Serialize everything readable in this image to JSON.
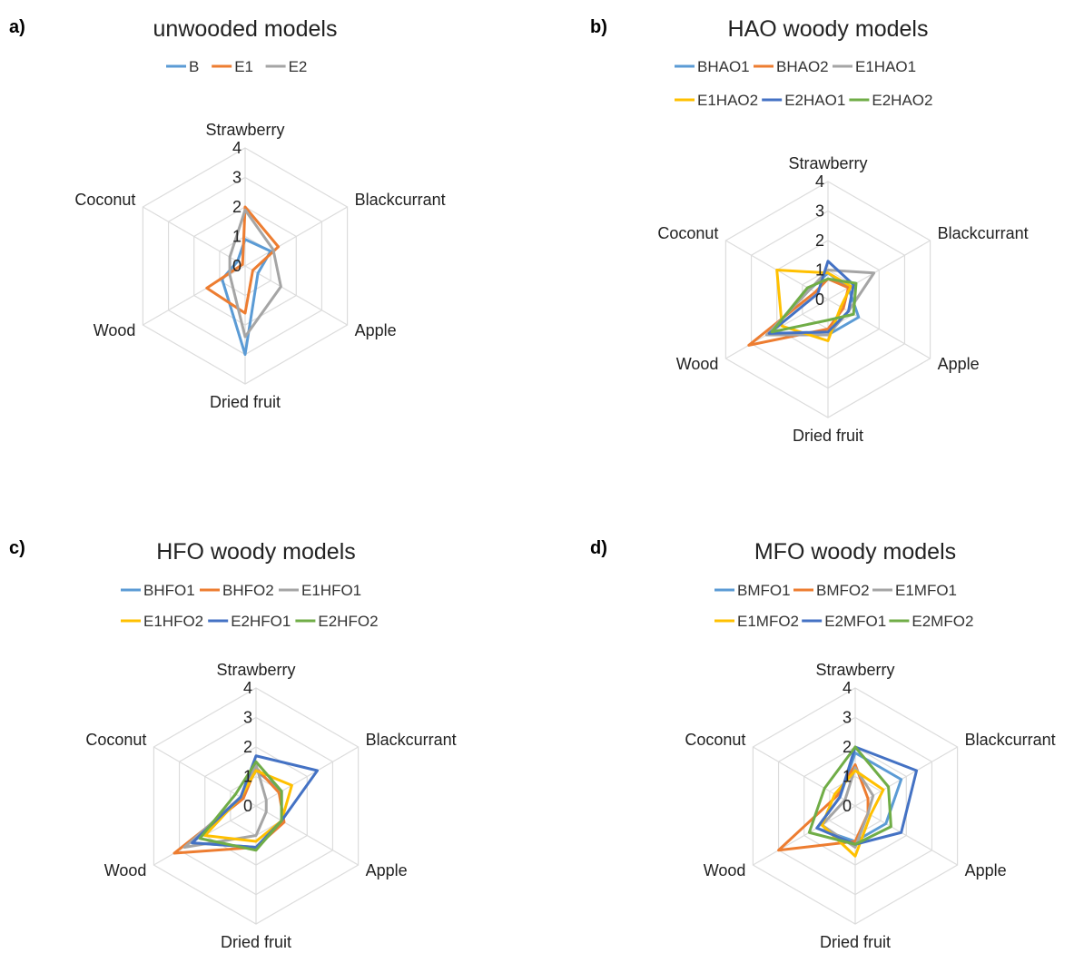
{
  "chart_data": [
    {
      "type": "radar",
      "panel_label": "a)",
      "title": "unwooded models",
      "axes": [
        "Strawberry",
        "Blackcurrant",
        "Apple",
        "Dried fruit",
        "Wood",
        "Coconut"
      ],
      "ticks": [
        "0",
        "1",
        "2",
        "3",
        "4"
      ],
      "rlim": [
        0,
        4
      ],
      "grid": true,
      "legend_position": "top",
      "series": [
        {
          "name": "B",
          "color": "#5B9BD5",
          "values": [
            0.9,
            1.0,
            0.5,
            3.0,
            0.9,
            0.3
          ]
        },
        {
          "name": "E1",
          "color": "#ED7D31",
          "values": [
            2.0,
            1.3,
            0.3,
            1.6,
            1.5,
            0.1
          ]
        },
        {
          "name": "E2",
          "color": "#A5A5A5",
          "values": [
            1.9,
            1.1,
            1.4,
            2.4,
            0.6,
            0.6
          ]
        }
      ]
    },
    {
      "type": "radar",
      "panel_label": "b)",
      "title": "HAO woody models",
      "axes": [
        "Strawberry",
        "Blackcurrant",
        "Apple",
        "Dried fruit",
        "Wood",
        "Coconut"
      ],
      "ticks": [
        "0",
        "1",
        "2",
        "3",
        "4"
      ],
      "rlim": [
        0,
        4
      ],
      "grid": true,
      "legend_position": "top",
      "series": [
        {
          "name": "BHAO1",
          "color": "#5B9BD5",
          "values": [
            0.9,
            0.8,
            1.2,
            1.2,
            2.4,
            0.7
          ]
        },
        {
          "name": "BHAO2",
          "color": "#ED7D31",
          "values": [
            0.7,
            0.8,
            0.6,
            1.0,
            3.1,
            0.5
          ]
        },
        {
          "name": "E1HAO1",
          "color": "#A5A5A5",
          "values": [
            1.0,
            1.8,
            0.8,
            1.2,
            2.4,
            0.7
          ]
        },
        {
          "name": "E1HAO2",
          "color": "#FFC000",
          "values": [
            0.9,
            0.9,
            0.5,
            1.4,
            1.8,
            2.0
          ]
        },
        {
          "name": "E2HAO1",
          "color": "#4472C4",
          "values": [
            1.3,
            1.0,
            0.8,
            1.1,
            2.3,
            0.4
          ]
        },
        {
          "name": "E2HAO2",
          "color": "#70AD47",
          "values": [
            0.7,
            1.1,
            1.0,
            0.7,
            2.2,
            0.8
          ]
        }
      ]
    },
    {
      "type": "radar",
      "panel_label": "c)",
      "title": "HFO woody models",
      "axes": [
        "Strawberry",
        "Blackcurrant",
        "Apple",
        "Dried fruit",
        "Wood",
        "Coconut"
      ],
      "ticks": [
        "0",
        "1",
        "2",
        "3",
        "4"
      ],
      "rlim": [
        0,
        4
      ],
      "grid": true,
      "legend_position": "top",
      "series": [
        {
          "name": "BHFO1",
          "color": "#5B9BD5",
          "values": [
            1.2,
            1.0,
            1.0,
            1.4,
            2.5,
            0.6
          ]
        },
        {
          "name": "BHFO2",
          "color": "#ED7D31",
          "values": [
            1.3,
            0.9,
            1.1,
            1.4,
            3.2,
            0.5
          ]
        },
        {
          "name": "E1HFO1",
          "color": "#A5A5A5",
          "values": [
            1.4,
            0.4,
            0.4,
            1.0,
            2.8,
            0.6
          ]
        },
        {
          "name": "E1HFO2",
          "color": "#FFC000",
          "values": [
            1.2,
            1.4,
            1.0,
            1.2,
            2.0,
            0.6
          ]
        },
        {
          "name": "E2HFO1",
          "color": "#4472C4",
          "values": [
            1.7,
            2.4,
            1.0,
            1.4,
            2.5,
            0.6
          ]
        },
        {
          "name": "E2HFO2",
          "color": "#70AD47",
          "values": [
            1.5,
            1.0,
            1.0,
            1.5,
            2.2,
            0.8
          ]
        }
      ]
    },
    {
      "type": "radar",
      "panel_label": "d)",
      "title": "MFO woody models",
      "axes": [
        "Strawberry",
        "Blackcurrant",
        "Apple",
        "Dried fruit",
        "Wood",
        "Coconut"
      ],
      "ticks": [
        "0",
        "1",
        "2",
        "3",
        "4"
      ],
      "rlim": [
        0,
        4
      ],
      "grid": true,
      "legend_position": "top",
      "series": [
        {
          "name": "BMFO1",
          "color": "#5B9BD5",
          "values": [
            1.8,
            1.8,
            1.2,
            1.2,
            1.5,
            0.6
          ]
        },
        {
          "name": "BMFO2",
          "color": "#ED7D31",
          "values": [
            1.4,
            0.5,
            0.5,
            1.2,
            3.0,
            0.7
          ]
        },
        {
          "name": "E1MFO1",
          "color": "#A5A5A5",
          "values": [
            1.3,
            0.7,
            0.5,
            1.4,
            1.3,
            0.4
          ]
        },
        {
          "name": "E1MFO2",
          "color": "#FFC000",
          "values": [
            1.2,
            1.1,
            0.6,
            1.7,
            1.3,
            0.8
          ]
        },
        {
          "name": "E2MFO1",
          "color": "#4472C4",
          "values": [
            2.0,
            2.4,
            1.8,
            1.3,
            1.5,
            0.6
          ]
        },
        {
          "name": "E2MFO2",
          "color": "#70AD47",
          "values": [
            2.0,
            1.3,
            1.4,
            1.3,
            1.8,
            1.2
          ]
        }
      ]
    }
  ]
}
